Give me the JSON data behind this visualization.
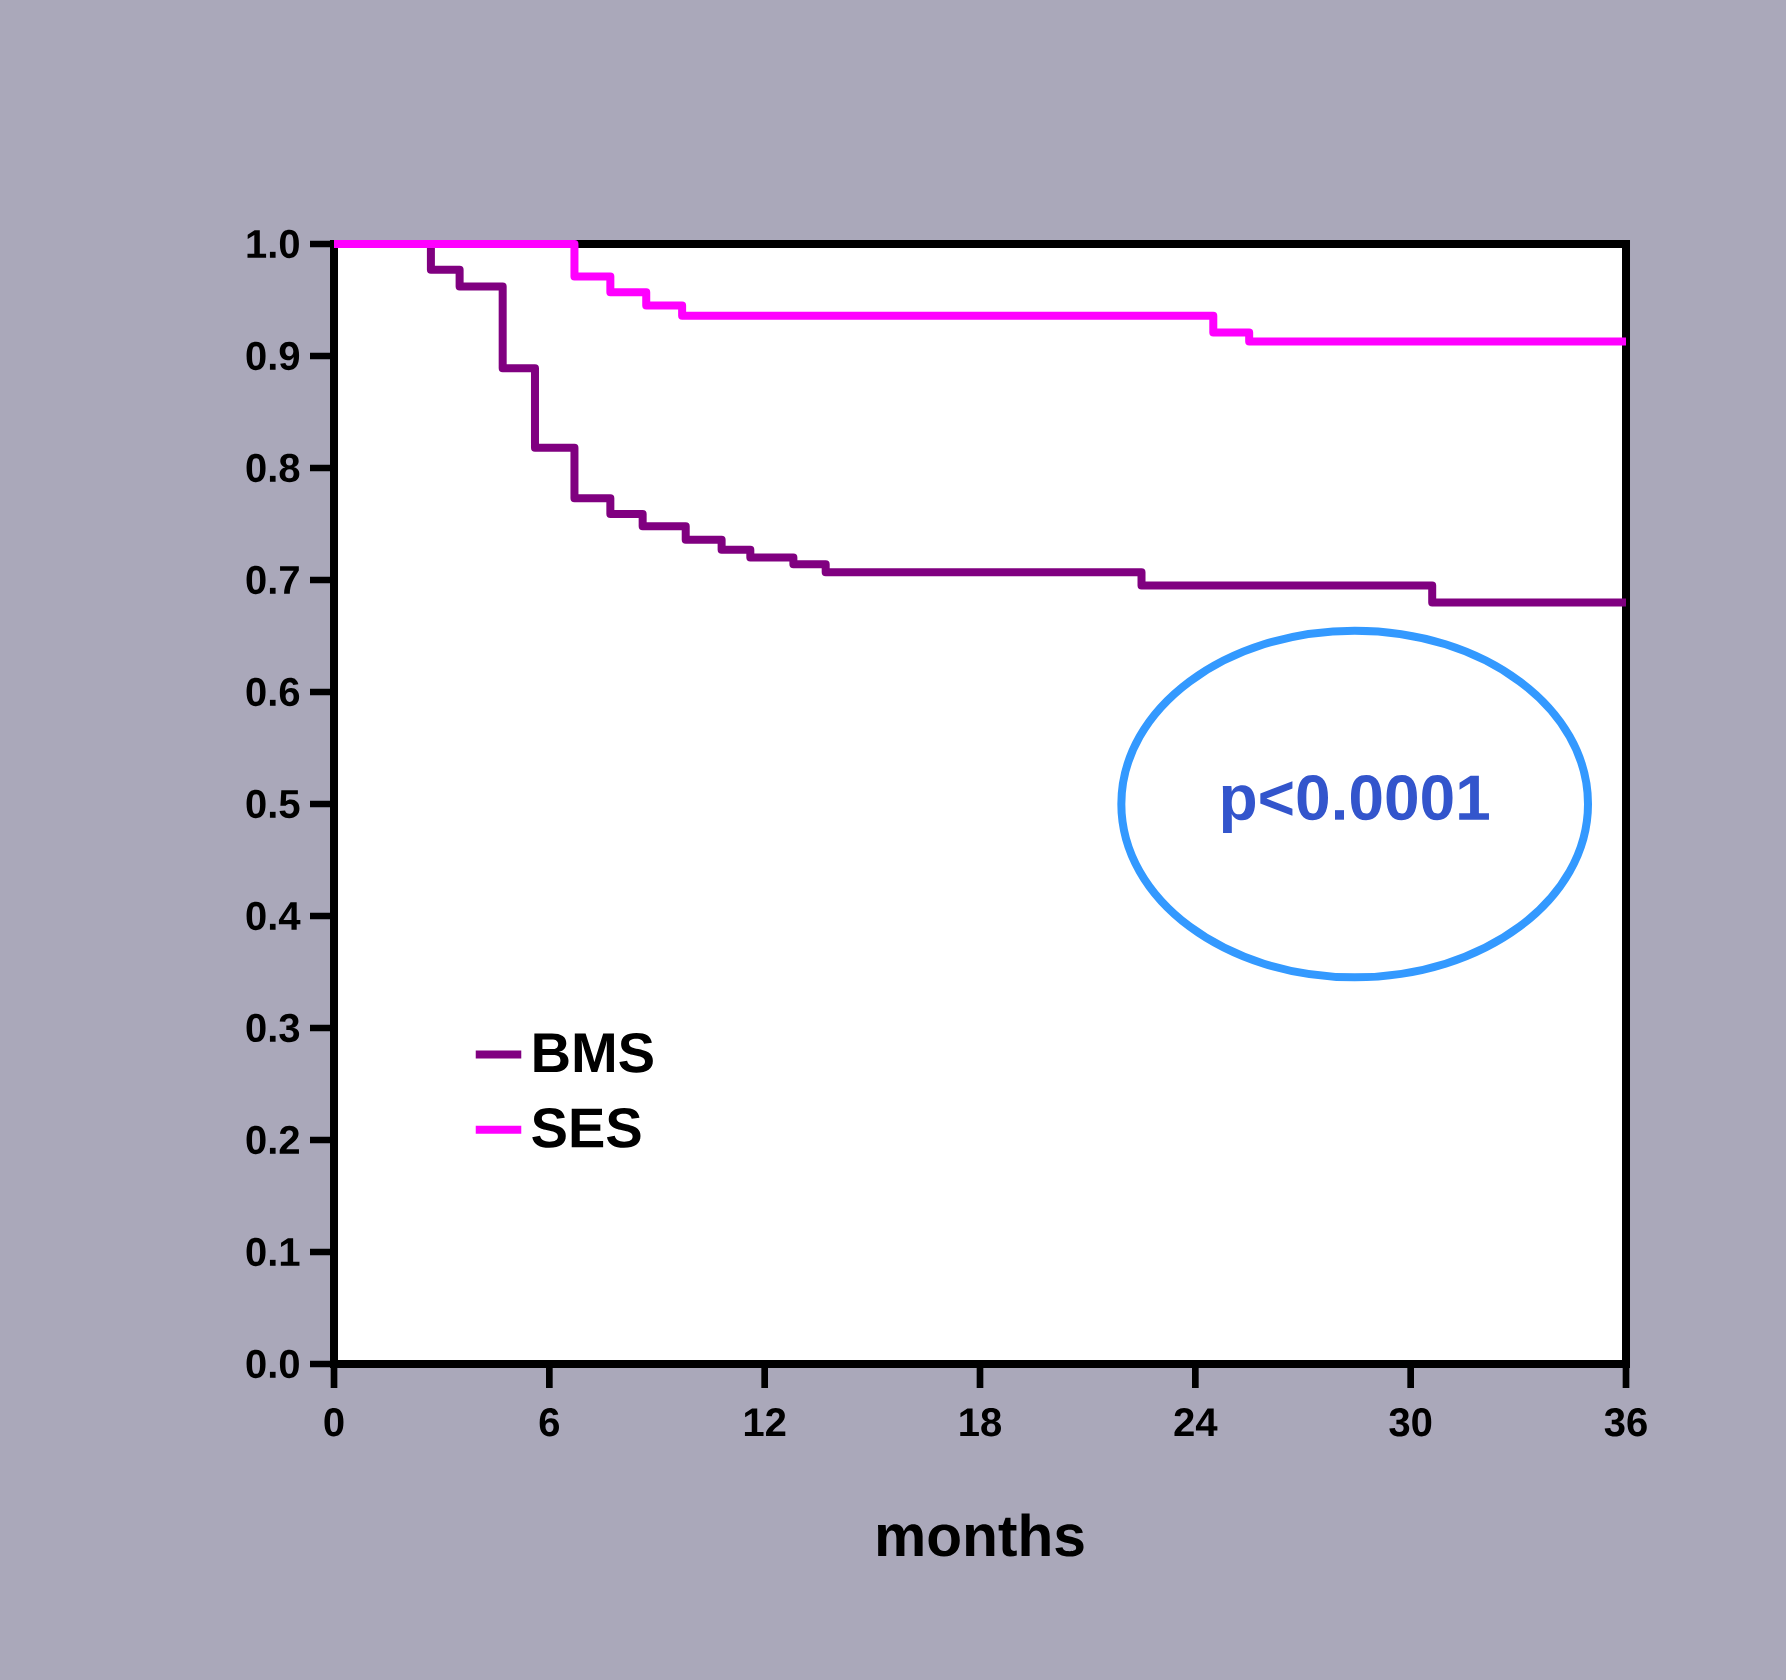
{
  "chart_data": {
    "type": "step",
    "xlabel": "months",
    "xlim": [
      0,
      36
    ],
    "xticks": [
      0,
      6,
      12,
      18,
      24,
      30,
      36
    ],
    "ylim": [
      0,
      1
    ],
    "yticks": [
      {
        "value": 0,
        "label": "0.0"
      },
      {
        "value": 0.1,
        "label": "0.1"
      },
      {
        "value": 0.2,
        "label": "0.2"
      },
      {
        "value": 0.3,
        "label": "0.3"
      },
      {
        "value": 0.4,
        "label": "0.4"
      },
      {
        "value": 0.5,
        "label": "0.5"
      },
      {
        "value": 0.6,
        "label": "0.6"
      },
      {
        "value": 0.7,
        "label": "0.7"
      },
      {
        "value": 0.8,
        "label": "0.8"
      },
      {
        "value": 0.9,
        "label": "0.9"
      },
      {
        "value": 1,
        "label": "1.0"
      }
    ],
    "series": [
      {
        "name": "BMS",
        "color": "#800080",
        "x": [
          0,
          2.7,
          3.5,
          4.7,
          5.6,
          6.7,
          7.7,
          8.6,
          9.8,
          10.8,
          11.6,
          12.8,
          13.7,
          22.5,
          30.6,
          36
        ],
        "values": [
          1.0,
          0.977,
          0.962,
          0.889,
          0.818,
          0.773,
          0.759,
          0.748,
          0.736,
          0.727,
          0.72,
          0.714,
          0.707,
          0.695,
          0.68,
          0.68
        ]
      },
      {
        "name": "SES",
        "color": "#ff00ff",
        "x": [
          0,
          6.7,
          7.7,
          8.7,
          9.7,
          24.5,
          25.5,
          36
        ],
        "values": [
          1.0,
          0.971,
          0.957,
          0.945,
          0.936,
          0.921,
          0.913,
          0.913
        ]
      }
    ],
    "legend": "bottom left",
    "annotations": [
      "p<0.0001"
    ]
  }
}
